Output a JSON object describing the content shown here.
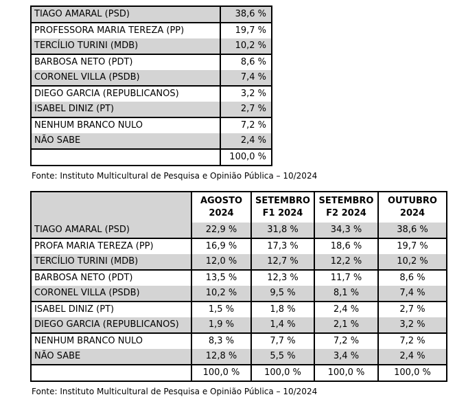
{
  "colors": {
    "background": "#ffffff",
    "shaded_row": "#d4d4d4",
    "border": "#000000",
    "text": "#000000"
  },
  "table1": {
    "rows": [
      {
        "label": "TIAGO AMARAL (PSD)",
        "value": "38,6 %"
      },
      {
        "label": "PROFESSORA MARIA TEREZA (PP)",
        "value": "19,7 %"
      },
      {
        "label": "TERCÍLIO TURINI (MDB)",
        "value": "10,2 %"
      },
      {
        "label": "BARBOSA NETO (PDT)",
        "value": "8,6 %"
      },
      {
        "label": "CORONEL VILLA (PSDB)",
        "value": "7,4 %"
      },
      {
        "label": "DIEGO GARCIA (REPUBLICANOS)",
        "value": "3,2 %"
      },
      {
        "label": "ISABEL DINIZ (PT)",
        "value": "2,7 %"
      },
      {
        "label": "NENHUM BRANCO NULO",
        "value": "7,2 %"
      },
      {
        "label": "NÃO SABE",
        "value": "2,4 %"
      },
      {
        "label": "",
        "value": "100,0 %"
      }
    ],
    "source": "Fonte: Instituto Multicultural de Pesquisa e Opinião Pública – 10/2024"
  },
  "table2": {
    "headers": [
      "",
      "AGOSTO\n2024",
      "SETEMBRO\nF1 2024",
      "SETEMBRO\nF2 2024",
      "OUTUBRO\n2024"
    ],
    "rows": [
      {
        "label": "TIAGO AMARAL (PSD)",
        "values": [
          "22,9 %",
          "31,8 %",
          "34,3 %",
          "38,6 %"
        ]
      },
      {
        "label": "PROFA MARIA TEREZA (PP)",
        "values": [
          "16,9 %",
          "17,3 %",
          "18,6 %",
          "19,7 %"
        ]
      },
      {
        "label": "TERCÍLIO TURINI (MDB)",
        "values": [
          "12,0 %",
          "12,7 %",
          "12,2 %",
          "10,2 %"
        ]
      },
      {
        "label": "BARBOSA NETO (PDT)",
        "values": [
          "13,5 %",
          "12,3 %",
          "11,7 %",
          "8,6 %"
        ]
      },
      {
        "label": "CORONEL VILLA (PSDB)",
        "values": [
          "10,2 %",
          "9,5 %",
          "8,1 %",
          "7,4 %"
        ]
      },
      {
        "label": "ISABEL DINIZ (PT)",
        "values": [
          "1,5 %",
          "1,8 %",
          "2,4 %",
          "2,7 %"
        ]
      },
      {
        "label": "DIEGO GARCIA (REPUBLICANOS)",
        "values": [
          "1,9 %",
          "1,4 %",
          "2,1 %",
          "3,2 %"
        ]
      },
      {
        "label": "NENHUM BRANCO NULO",
        "values": [
          "8,3 %",
          "7,7 %",
          "7,2 %",
          "7,2 %"
        ]
      },
      {
        "label": "NÃO SABE",
        "values": [
          "12,8 %",
          "5,5 %",
          "3,4 %",
          "2,4 %"
        ]
      },
      {
        "label": "",
        "values": [
          "100,0 %",
          "100,0 %",
          "100,0 %",
          "100,0 %"
        ]
      }
    ],
    "source": "Fonte: Instituto Multicultural de Pesquisa e Opinião Pública – 10/2024"
  }
}
